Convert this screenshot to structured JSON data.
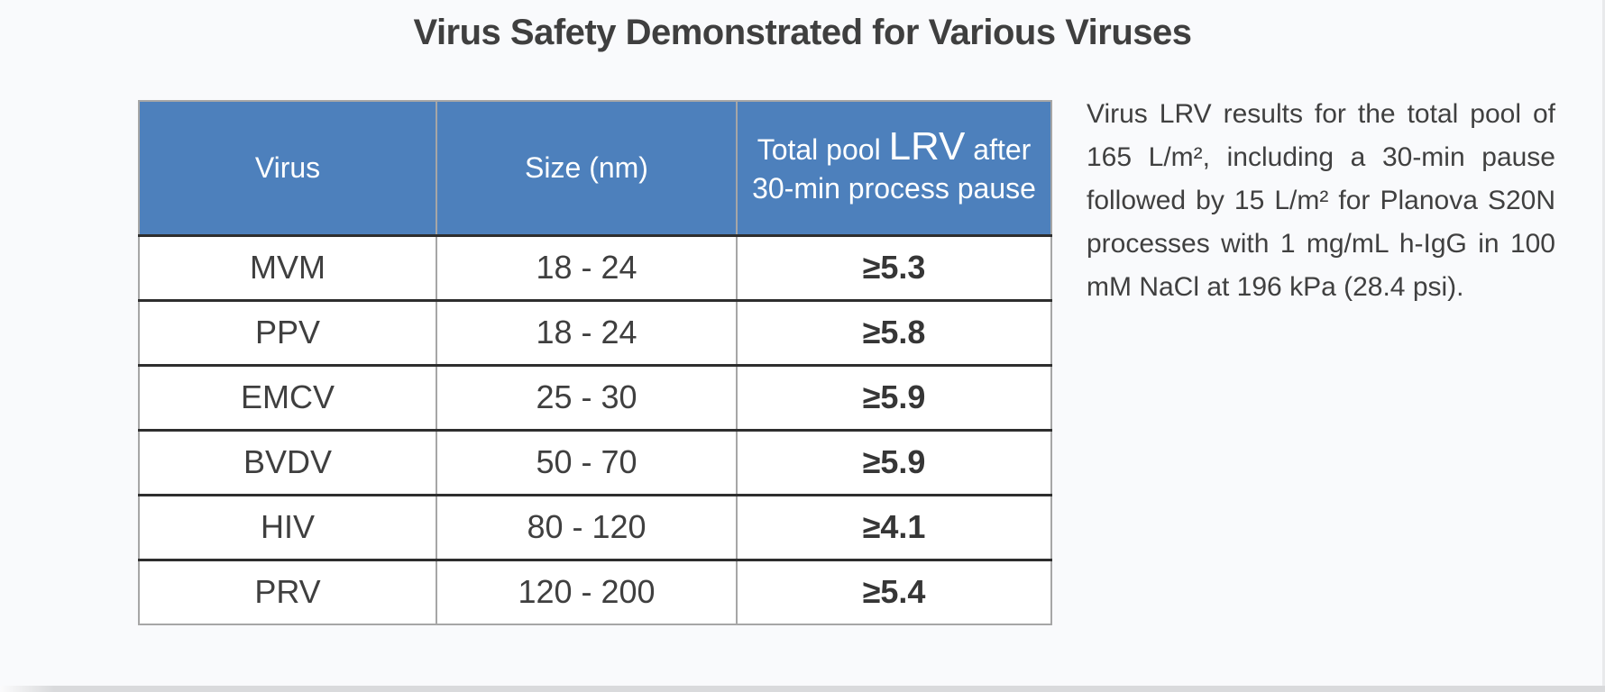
{
  "title": "Virus Safety Demonstrated for Various Viruses",
  "colors": {
    "header_bg": "#4d80bc",
    "header_text": "#ffffff",
    "body_text": "#3f3f3f",
    "row_separator": "#2e2e2e",
    "table_outline": "#a6a6a6",
    "page_bg": "#f9fafc"
  },
  "table": {
    "header": {
      "col_virus": "Virus",
      "col_size": "Size (nm)",
      "col_lrv_prefix": "Total pool ",
      "col_lrv_emph": "LRV",
      "col_lrv_suffix": " after 30-min process pause"
    },
    "rows": [
      {
        "virus": "MVM",
        "size": "18 - 24",
        "lrv": "≥5.3"
      },
      {
        "virus": "PPV",
        "size": "18 - 24",
        "lrv": "≥5.8"
      },
      {
        "virus": "EMCV",
        "size": "25 - 30",
        "lrv": "≥5.9"
      },
      {
        "virus": "BVDV",
        "size": "50 - 70",
        "lrv": "≥5.9"
      },
      {
        "virus": "HIV",
        "size": "80 - 120",
        "lrv": "≥4.1"
      },
      {
        "virus": "PRV",
        "size": "120 - 200",
        "lrv": "≥5.4"
      }
    ]
  },
  "caption": {
    "text": "Virus LRV results for the total pool of 165 L/m², including a 30-min pause followed by 15 L/m² for Planova S20N processes with 1 mg/mL h-IgG in 100 mM NaCl at 196 kPa (28.4 psi)."
  }
}
